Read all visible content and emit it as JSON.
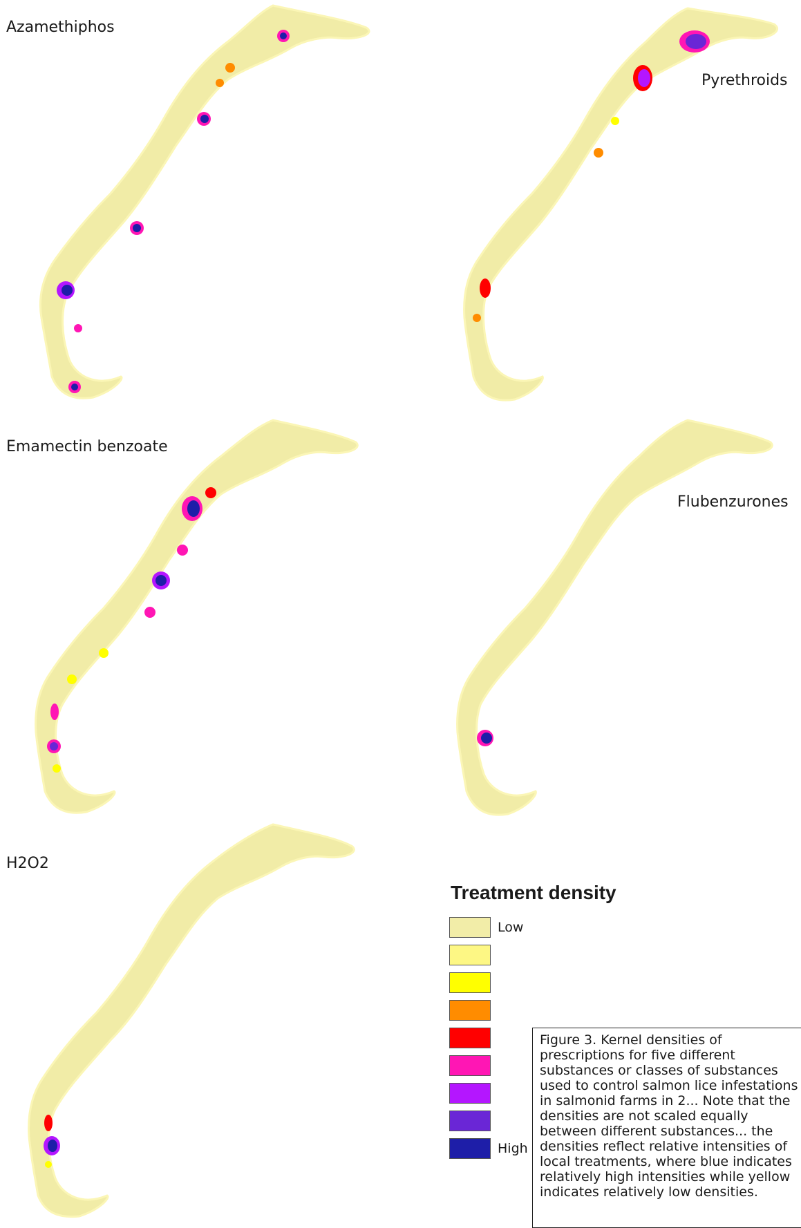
{
  "panels": [
    {
      "id": "azamethiphos",
      "label": "Azamethiphos"
    },
    {
      "id": "pyrethroids",
      "label": "Pyrethroids"
    },
    {
      "id": "emamectin",
      "label": "Emamectin benzoate"
    },
    {
      "id": "flubenzurones",
      "label": "Flubenzurones"
    },
    {
      "id": "h2o2",
      "label": "H2O2"
    }
  ],
  "legend": {
    "title": "Treatment density",
    "low_label": "Low",
    "high_label": "High",
    "colors": [
      "#f2eda8",
      "#fdf784",
      "#ffff00",
      "#ff8c00",
      "#ff0000",
      "#ff16b4",
      "#b416ff",
      "#6a26d6",
      "#1e1ea8"
    ]
  },
  "caption": {
    "prefix": "Figure 3",
    "text": ". Kernel densities of prescriptions for five different substances or classes of substances used to control salmon lice infestations in salmonid farms in 2... Note that the densities are not scaled equally between different substances... the densities reflect relative intensities of local treatments, where blue indicates relatively high intensities while yellow indicates relatively low densities."
  },
  "colors": {
    "coast": "#f1eca7",
    "coast_edge": "#fbf6b6"
  }
}
